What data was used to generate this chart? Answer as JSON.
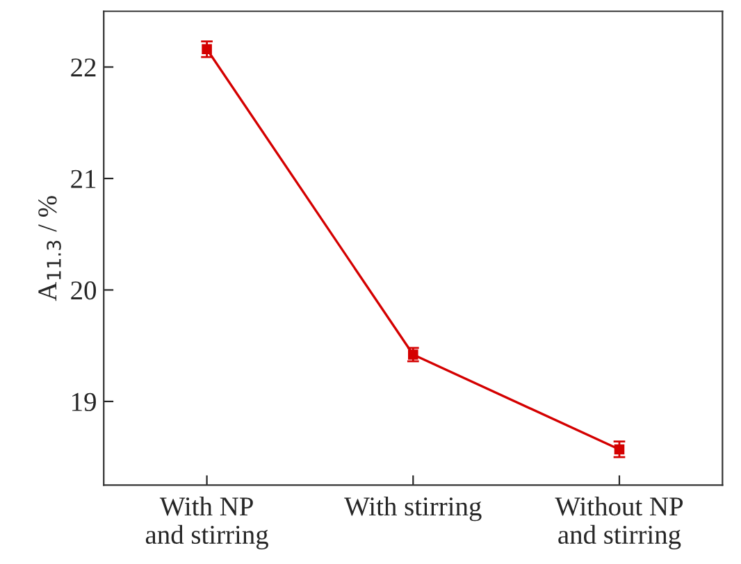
{
  "chart_data": {
    "type": "line",
    "ylabel": "A$_{11.3}$ / %",
    "categories": [
      "With NP\nand stirring",
      "With stirring",
      "Without NP\nand stirring"
    ],
    "series": [
      {
        "color": "#d40000",
        "values": [
          22.16,
          19.42,
          18.57
        ],
        "errors": [
          0.07,
          0.06,
          0.07
        ]
      }
    ],
    "ylim": [
      18.25,
      22.5
    ],
    "yticks": [
      19,
      20,
      21,
      22
    ],
    "marker": "square",
    "line_style": "solid",
    "grid": false,
    "legend": false
  }
}
